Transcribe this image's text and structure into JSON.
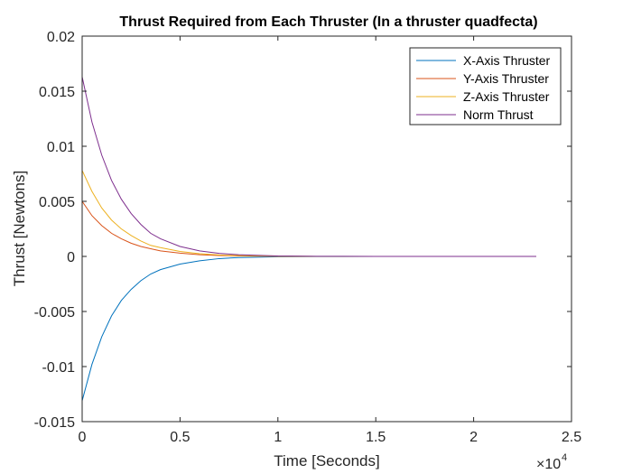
{
  "chart_data": {
    "type": "line",
    "title": "Thrust Required from Each Thruster (In a thruster quadfecta)",
    "xlabel": "Time [Seconds]",
    "ylabel": "Thrust [Newtons]",
    "xlim": [
      0,
      25000
    ],
    "ylim": [
      -0.015,
      0.02
    ],
    "x_ticks": [
      0,
      5000,
      10000,
      15000,
      20000,
      25000
    ],
    "x_tick_labels": [
      "0",
      "0.5",
      "1",
      "1.5",
      "2",
      "2.5"
    ],
    "x_exponent_base": "×10",
    "x_exponent_power": "4",
    "y_ticks": [
      -0.015,
      -0.01,
      -0.005,
      0,
      0.005,
      0.01,
      0.015,
      0.02
    ],
    "y_tick_labels": [
      "-0.015",
      "-0.01",
      "-0.005",
      "0",
      "0.005",
      "0.01",
      "0.015",
      "0.02"
    ],
    "grid": false,
    "legend_position": "top-right",
    "series": [
      {
        "name": "X-Axis Thruster",
        "color": "#0072BD",
        "x": [
          0,
          500,
          1000,
          1500,
          2000,
          2500,
          3000,
          3500,
          4000,
          5000,
          6000,
          7000,
          8000,
          10000,
          12000,
          15000,
          20000,
          23200
        ],
        "y": [
          -0.0131,
          -0.0098,
          -0.0073,
          -0.0054,
          -0.004,
          -0.003,
          -0.0022,
          -0.0016,
          -0.0012,
          -0.0007,
          -0.0004,
          -0.0002,
          -0.0001,
          -3e-05,
          -1e-05,
          0,
          0,
          0
        ]
      },
      {
        "name": "Y-Axis Thruster",
        "color": "#D95319",
        "x": [
          0,
          500,
          1000,
          1500,
          2000,
          2500,
          3000,
          3500,
          4000,
          5000,
          6000,
          7000,
          8000,
          10000,
          12000,
          15000,
          20000,
          23200
        ],
        "y": [
          0.005,
          0.0037,
          0.0028,
          0.0021,
          0.0016,
          0.0012,
          0.0009,
          0.0007,
          0.0005,
          0.0003,
          0.00015,
          8e-05,
          4e-05,
          1e-05,
          0,
          0,
          0,
          0
        ]
      },
      {
        "name": "Z-Axis Thruster",
        "color": "#EDB120",
        "x": [
          0,
          500,
          1000,
          1500,
          2000,
          2500,
          3000,
          3500,
          4000,
          5000,
          6000,
          7000,
          8000,
          10000,
          12000,
          15000,
          20000,
          23200
        ],
        "y": [
          0.0078,
          0.0059,
          0.0044,
          0.0033,
          0.0025,
          0.0019,
          0.0014,
          0.001,
          0.0008,
          0.00045,
          0.00025,
          0.00013,
          7e-05,
          2e-05,
          0,
          0,
          0,
          0
        ]
      },
      {
        "name": "Norm Thrust",
        "color": "#7E2F8E",
        "x": [
          0,
          500,
          1000,
          1500,
          2000,
          2500,
          3000,
          3500,
          4000,
          5000,
          6000,
          7000,
          8000,
          10000,
          12000,
          15000,
          20000,
          23200
        ],
        "y": [
          0.0163,
          0.0122,
          0.0092,
          0.0069,
          0.0052,
          0.0039,
          0.0029,
          0.0021,
          0.0016,
          0.0009,
          0.0005,
          0.00028,
          0.00015,
          4e-05,
          1e-05,
          0,
          0,
          0
        ]
      }
    ]
  }
}
